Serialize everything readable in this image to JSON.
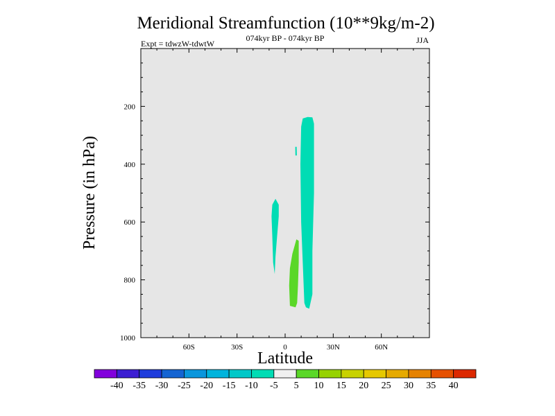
{
  "chart_data": {
    "type": "contour",
    "title": "Meridional Streamfunction (10**9kg/m-2)",
    "experiment": "Expt = tdwzW-tdwtW",
    "period": "074kyr BP - 074kyr BP",
    "season": "JJA",
    "xlabel": "Latitude",
    "ylabel": "Pressure (in hPa)",
    "xlim": [
      -90,
      90
    ],
    "ylim": [
      1000,
      0
    ],
    "x_ticks": [
      {
        "value": -60,
        "label": "60S"
      },
      {
        "value": -30,
        "label": "30S"
      },
      {
        "value": 0,
        "label": "0"
      },
      {
        "value": 30,
        "label": "30N"
      },
      {
        "value": 60,
        "label": "60N"
      }
    ],
    "y_ticks": [
      {
        "value": 200,
        "label": "200"
      },
      {
        "value": 400,
        "label": "400"
      },
      {
        "value": 600,
        "label": "600"
      },
      {
        "value": 800,
        "label": "800"
      },
      {
        "value": 1000,
        "label": "1000"
      }
    ],
    "background_fill": "#e6e6e6",
    "regions": [
      {
        "name": "neg-cell-tropics-main",
        "level": "-10 to -5",
        "color": "#00dcb4",
        "polygon": [
          [
            11,
            242
          ],
          [
            14,
            237
          ],
          [
            17,
            238
          ],
          [
            18,
            260
          ],
          [
            18,
            500
          ],
          [
            17,
            700
          ],
          [
            17,
            850
          ],
          [
            15,
            900
          ],
          [
            13,
            895
          ],
          [
            12,
            880
          ],
          [
            10,
            600
          ],
          [
            9.5,
            400
          ],
          [
            10,
            270
          ]
        ]
      },
      {
        "name": "neg-cell-south",
        "level": "-10 to -5",
        "color": "#00dcb4",
        "polygon": [
          [
            -8,
            540
          ],
          [
            -6,
            520
          ],
          [
            -4,
            540
          ],
          [
            -4,
            580
          ],
          [
            -5,
            650
          ],
          [
            -6,
            720
          ],
          [
            -6.5,
            780
          ],
          [
            -7.5,
            740
          ],
          [
            -8,
            650
          ],
          [
            -8.5,
            580
          ]
        ]
      },
      {
        "name": "neg-cell-small",
        "level": "-10 to -5",
        "color": "#00dcb4",
        "polygon": [
          [
            6.3,
            340
          ],
          [
            7.2,
            340
          ],
          [
            7.3,
            370
          ],
          [
            6.4,
            370
          ]
        ]
      },
      {
        "name": "pos-cell",
        "level": "5 to 10",
        "color": "#5ad728",
        "polygon": [
          [
            7,
            660
          ],
          [
            8.5,
            665
          ],
          [
            8.5,
            740
          ],
          [
            8,
            820
          ],
          [
            7.5,
            880
          ],
          [
            6.5,
            895
          ],
          [
            3,
            890
          ],
          [
            2.5,
            820
          ],
          [
            3,
            760
          ],
          [
            4.5,
            710
          ],
          [
            6,
            680
          ]
        ]
      }
    ],
    "colorbar": {
      "levels": [
        "-40",
        "-35",
        "-30",
        "-25",
        "-20",
        "-15",
        "-10",
        "-5",
        "5",
        "10",
        "15",
        "20",
        "25",
        "30",
        "35",
        "40"
      ],
      "colors": [
        "#8200dc",
        "#3c1ed2",
        "#1e3cdc",
        "#1464d2",
        "#0a96dc",
        "#00b4dc",
        "#00c8c8",
        "#00dcb4",
        "#f0f0f0",
        "#5ad728",
        "#96d200",
        "#c8d200",
        "#e6c800",
        "#e6aa00",
        "#e68200",
        "#e65000",
        "#dc2800"
      ]
    }
  }
}
